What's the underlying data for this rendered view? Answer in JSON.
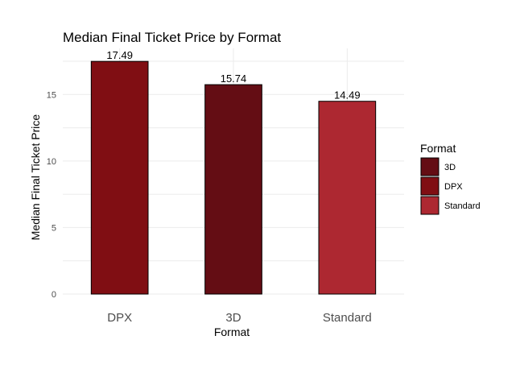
{
  "chart_data": {
    "type": "bar",
    "title": "Median Final Ticket Price by Format",
    "xlabel": "Format",
    "ylabel": "Median Final Ticket Price",
    "categories": [
      "DPX",
      "3D",
      "Standard"
    ],
    "values": [
      17.49,
      15.74,
      14.49
    ],
    "value_labels": [
      "17.49",
      "15.74",
      "14.49"
    ],
    "y_ticks": [
      0,
      5,
      10,
      15
    ],
    "ylim": [
      0,
      17.5
    ],
    "grid": true,
    "bar_colors": {
      "DPX": "#800e13",
      "3D": "#640d14",
      "Standard": "#ad2831"
    },
    "legend": {
      "title": "Format",
      "placement": "right",
      "items": [
        {
          "label": "3D",
          "color": "#640d14"
        },
        {
          "label": "DPX",
          "color": "#800e13"
        },
        {
          "label": "Standard",
          "color": "#ad2831"
        }
      ]
    }
  }
}
